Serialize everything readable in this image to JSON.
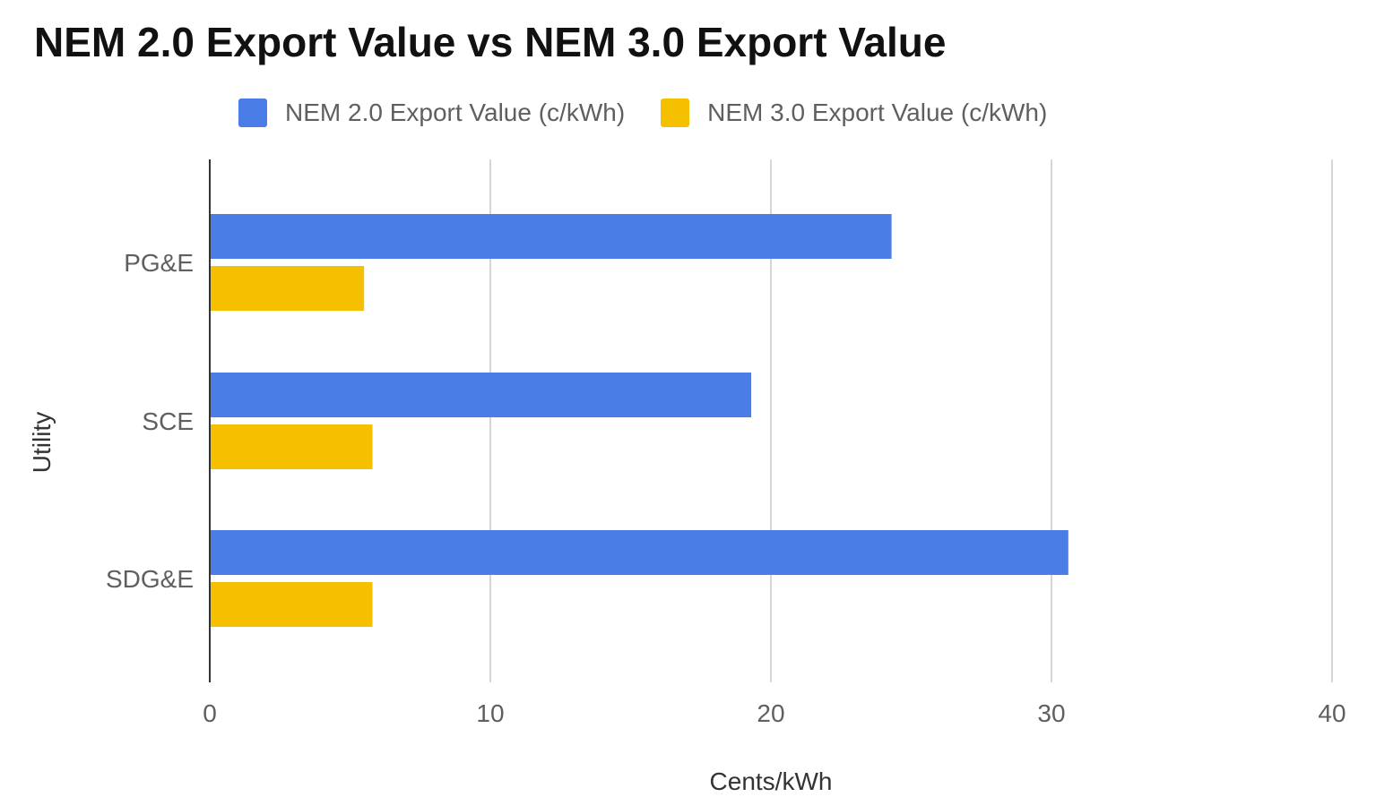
{
  "chart_data": {
    "type": "bar",
    "orientation": "horizontal",
    "title": "NEM 2.0 Export Value vs NEM 3.0 Export Value",
    "categories": [
      "PG&E",
      "SCE",
      "SDG&E"
    ],
    "series": [
      {
        "name": "NEM 2.0 Export Value (c/kWh)",
        "color": "#4a7ee6",
        "values": [
          24.3,
          19.3,
          30.6
        ]
      },
      {
        "name": "NEM 3.0 Export Value (c/kWh)",
        "color": "#f5c000",
        "values": [
          5.5,
          5.8,
          5.8
        ]
      }
    ],
    "xlabel": "Cents/kWh",
    "ylabel": "Utility",
    "xlim": [
      0,
      40
    ],
    "xticks": [
      0,
      10,
      20,
      30,
      40
    ],
    "grid": true,
    "legend_position": "top"
  }
}
